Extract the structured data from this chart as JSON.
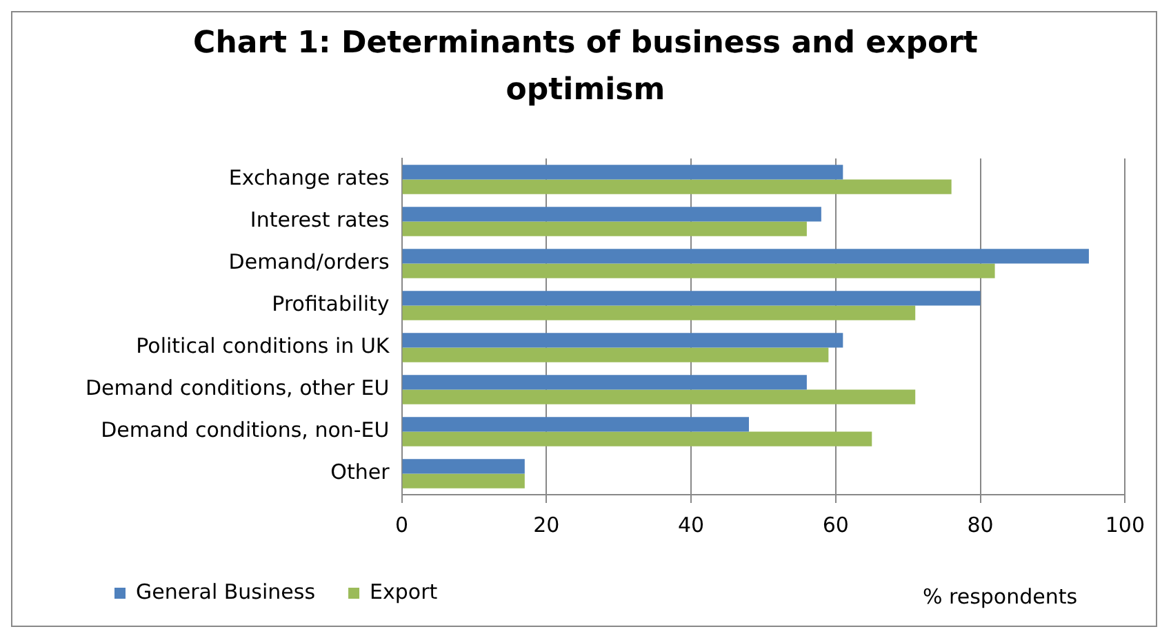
{
  "chart_data": {
    "type": "bar",
    "orientation": "horizontal",
    "title": "Chart 1: Determinants of business and export optimism",
    "xlabel": "% respondents",
    "categories": [
      "Exchange rates",
      "Interest rates",
      "Demand/orders",
      "Profitability",
      "Political conditions in UK",
      "Demand conditions, other EU",
      "Demand conditions, non-EU",
      "Other"
    ],
    "series": [
      {
        "name": "General Business",
        "color": "#4f81bd",
        "values": [
          61,
          58,
          95,
          80,
          61,
          56,
          48,
          17
        ]
      },
      {
        "name": "Export",
        "color": "#9bbb59",
        "values": [
          76,
          56,
          82,
          71,
          59,
          71,
          65,
          17
        ]
      }
    ],
    "xlim": [
      0,
      100
    ],
    "xticks": [
      0,
      20,
      40,
      60,
      80,
      100
    ],
    "grid": "x",
    "legend": "bottom"
  }
}
